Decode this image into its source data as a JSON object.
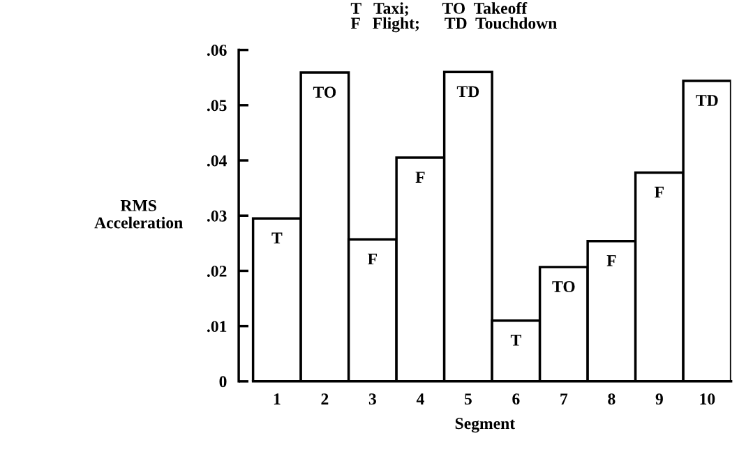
{
  "chart_data": {
    "type": "bar",
    "xlabel": "Segment",
    "ylabel": "RMS\nAcceleration",
    "categories": [
      "1",
      "2",
      "3",
      "4",
      "5",
      "6",
      "7",
      "8",
      "9",
      "10"
    ],
    "values": [
      0.0295,
      0.0559,
      0.0257,
      0.0405,
      0.056,
      0.011,
      0.0207,
      0.0254,
      0.0378,
      0.0544
    ],
    "color": "#ffffff",
    "ylim": [
      0,
      0.06
    ],
    "yticks": [
      {
        "value": 0,
        "label": "0"
      },
      {
        "value": 0.01,
        "label": ".01"
      },
      {
        "value": 0.02,
        "label": ".02"
      },
      {
        "value": 0.03,
        "label": ".03"
      },
      {
        "value": 0.04,
        "label": ".04"
      },
      {
        "value": 0.05,
        "label": ".05"
      },
      {
        "value": 0.06,
        "label": ".06"
      }
    ],
    "grid": false,
    "annotations": [
      "T   Taxi;        TO  Takeoff\nF   Flight;      TD  Touchdown",
      {
        "text": "T",
        "x": "1",
        "y": 0.0295
      },
      {
        "text": "TO",
        "x": "2",
        "y": 0.0559
      },
      {
        "text": "F",
        "x": "3",
        "y": 0.0257
      },
      {
        "text": "F",
        "x": "4",
        "y": 0.0405
      },
      {
        "text": "TD",
        "x": "5",
        "y": 0.056
      },
      {
        "text": "T",
        "x": "6",
        "y": 0.011
      },
      {
        "text": "TO",
        "x": "7",
        "y": 0.0207
      },
      {
        "text": "F",
        "x": "8",
        "y": 0.0254
      },
      {
        "text": "F",
        "x": "9",
        "y": 0.0378
      },
      {
        "text": "TD",
        "x": "10",
        "y": 0.0544
      }
    ]
  }
}
